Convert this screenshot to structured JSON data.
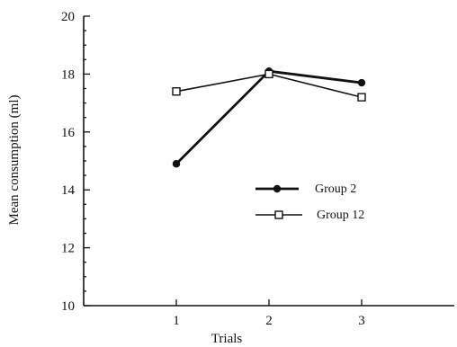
{
  "chart_data": {
    "type": "line",
    "xlabel": "Trials",
    "ylabel": "Mean consumption (ml)",
    "categories": [
      "1",
      "2",
      "3"
    ],
    "x": [
      1,
      2,
      3
    ],
    "xlim": [
      0,
      4
    ],
    "ylim": [
      10,
      20
    ],
    "yticks": [
      10,
      12,
      14,
      16,
      18,
      20
    ],
    "grid": false,
    "legend_position": "center-right",
    "series": [
      {
        "name": "Group 2",
        "marker": "filled-circle",
        "color": "#111111",
        "line_width": "thick",
        "values": [
          14.9,
          18.1,
          17.7
        ]
      },
      {
        "name": "Group 12",
        "marker": "open-square",
        "color": "#111111",
        "line_width": "thin",
        "values": [
          17.4,
          18.0,
          17.2
        ]
      }
    ]
  }
}
